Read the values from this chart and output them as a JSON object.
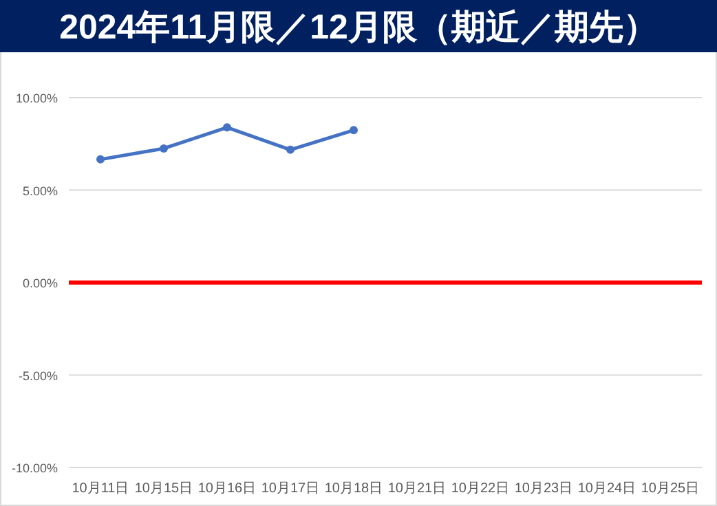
{
  "chart_data": {
    "type": "line",
    "title": "2024年11月限／12月限（期近／期先）",
    "categories": [
      "10月11日",
      "10月15日",
      "10月16日",
      "10月17日",
      "10月18日",
      "10月21日",
      "10月22日",
      "10月23日",
      "10月24日",
      "10月25日"
    ],
    "series": [
      {
        "color": "#4472c4",
        "values": [
          6.66,
          7.25,
          8.39,
          7.18,
          8.24,
          null,
          null,
          null,
          null,
          null
        ]
      }
    ],
    "ylim": [
      -10,
      10
    ],
    "yticks": [
      {
        "value": -10,
        "label": "-10.00%"
      },
      {
        "value": -5,
        "label": "-5.00%"
      },
      {
        "value": 0,
        "label": "0.00%"
      },
      {
        "value": 5,
        "label": "5.00%"
      },
      {
        "value": 10,
        "label": "10.00%"
      }
    ],
    "ref_lines": [
      {
        "axis": "y",
        "value": 0,
        "color": "#ff0000",
        "line_style": "solid"
      }
    ],
    "grid": "y",
    "marker": "circle",
    "line_style": "solid"
  }
}
